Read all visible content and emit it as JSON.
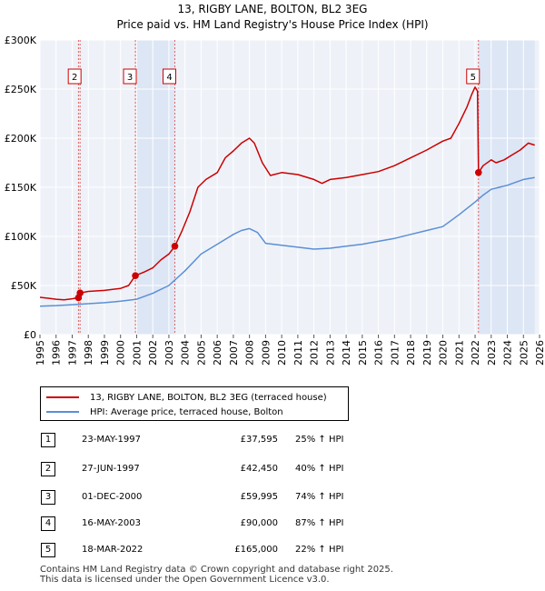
{
  "chart_data": {
    "type": "line",
    "title": "13, RIGBY LANE, BOLTON, BL2 3EG",
    "subtitle": "Price paid vs. HM Land Registry's House Price Index (HPI)",
    "xlabel": "",
    "ylabel": "",
    "xlim": [
      1995,
      2026
    ],
    "ylim": [
      0,
      300000
    ],
    "y_ticks": [
      {
        "value": 0,
        "label": "£0"
      },
      {
        "value": 50000,
        "label": "£50K"
      },
      {
        "value": 100000,
        "label": "£100K"
      },
      {
        "value": 150000,
        "label": "£150K"
      },
      {
        "value": 200000,
        "label": "£200K"
      },
      {
        "value": 250000,
        "label": "£250K"
      },
      {
        "value": 300000,
        "label": "£300K"
      }
    ],
    "x_ticks": [
      "1995",
      "1996",
      "1997",
      "1998",
      "1999",
      "2000",
      "2001",
      "2002",
      "2003",
      "2004",
      "2005",
      "2006",
      "2007",
      "2008",
      "2009",
      "2010",
      "2011",
      "2012",
      "2013",
      "2014",
      "2015",
      "2016",
      "2017",
      "2018",
      "2019",
      "2020",
      "2021",
      "2022",
      "2023",
      "2024",
      "2025",
      "2026"
    ],
    "grid": true,
    "series": [
      {
        "name": "13, RIGBY LANE, BOLTON, BL2 3EG (terraced house)",
        "color": "#cc0000",
        "x": [
          1995.0,
          1995.5,
          1996.0,
          1996.5,
          1997.0,
          1997.39,
          1997.49,
          1998.0,
          1999.0,
          2000.0,
          2000.5,
          2000.92,
          2001.5,
          2002.0,
          2002.5,
          2003.0,
          2003.37,
          2003.8,
          2004.3,
          2004.8,
          2005.3,
          2006.0,
          2006.5,
          2007.0,
          2007.5,
          2008.0,
          2008.3,
          2008.8,
          2009.3,
          2010.0,
          2011.0,
          2012.0,
          2012.5,
          2013.0,
          2014.0,
          2015.0,
          2016.0,
          2017.0,
          2018.0,
          2019.0,
          2020.0,
          2020.5,
          2021.0,
          2021.5,
          2021.8,
          2022.0,
          2022.15,
          2022.21,
          2022.5,
          2023.0,
          2023.3,
          2023.8,
          2024.3,
          2024.8,
          2025.3,
          2025.7
        ],
        "values": [
          38000,
          37000,
          36000,
          35500,
          36500,
          37595,
          42450,
          44000,
          45000,
          47000,
          50000,
          59995,
          64000,
          68000,
          76000,
          82000,
          90000,
          105000,
          125000,
          150000,
          158000,
          165000,
          180000,
          187000,
          195000,
          200000,
          195000,
          175000,
          162000,
          165000,
          163000,
          158000,
          154000,
          158000,
          160000,
          163000,
          166000,
          172000,
          180000,
          188000,
          197000,
          200000,
          215000,
          232000,
          245000,
          252000,
          248000,
          165000,
          172000,
          178000,
          175000,
          178000,
          183000,
          188000,
          195000,
          193000
        ]
      },
      {
        "name": "HPI: Average price, terraced house, Bolton",
        "color": "#5b8fd4",
        "x": [
          1995.0,
          1996.0,
          1997.0,
          1998.0,
          1999.0,
          2000.0,
          2001.0,
          2002.0,
          2003.0,
          2004.0,
          2005.0,
          2006.0,
          2007.0,
          2007.5,
          2008.0,
          2008.5,
          2009.0,
          2010.0,
          2011.0,
          2012.0,
          2013.0,
          2014.0,
          2015.0,
          2016.0,
          2017.0,
          2018.0,
          2019.0,
          2020.0,
          2021.0,
          2022.0,
          2022.5,
          2023.0,
          2023.5,
          2024.0,
          2024.5,
          2025.0,
          2025.7
        ],
        "values": [
          29000,
          29500,
          30500,
          31500,
          32500,
          34000,
          36000,
          42000,
          50000,
          65000,
          82000,
          92000,
          102000,
          106000,
          108000,
          104000,
          93000,
          91000,
          89000,
          87000,
          88000,
          90000,
          92000,
          95000,
          98000,
          102000,
          106000,
          110000,
          122000,
          135000,
          142000,
          148000,
          150000,
          152000,
          155000,
          158000,
          160000
        ]
      }
    ],
    "sale_markers": [
      {
        "label": "1",
        "x": 1997.39,
        "value": 37595
      },
      {
        "label": "2",
        "x": 1997.49,
        "value": 42450
      },
      {
        "label": "3",
        "x": 2000.92,
        "value": 59995
      },
      {
        "label": "4",
        "x": 2003.37,
        "value": 90000
      },
      {
        "label": "5",
        "x": 2022.21,
        "value": 165000
      }
    ],
    "shaded_ranges": [
      [
        2000.92,
        2003.37
      ],
      [
        2022.21,
        2025.7
      ]
    ],
    "flag_labels": [
      {
        "label": "2",
        "x": 1997.49
      },
      {
        "label": "3",
        "x": 2000.92
      },
      {
        "label": "4",
        "x": 2003.37
      },
      {
        "label": "5",
        "x": 2022.21
      }
    ]
  },
  "legend": {
    "items": [
      {
        "label": "13, RIGBY LANE, BOLTON, BL2 3EG (terraced house)",
        "color": "#cc0000"
      },
      {
        "label": "HPI: Average price, terraced house, Bolton",
        "color": "#5b8fd4"
      }
    ]
  },
  "sales": [
    {
      "num": "1",
      "date": "23-MAY-1997",
      "price": "£37,595",
      "hpi": "25% ↑ HPI"
    },
    {
      "num": "2",
      "date": "27-JUN-1997",
      "price": "£42,450",
      "hpi": "40% ↑ HPI"
    },
    {
      "num": "3",
      "date": "01-DEC-2000",
      "price": "£59,995",
      "hpi": "74% ↑ HPI"
    },
    {
      "num": "4",
      "date": "16-MAY-2003",
      "price": "£90,000",
      "hpi": "87% ↑ HPI"
    },
    {
      "num": "5",
      "date": "18-MAR-2022",
      "price": "£165,000",
      "hpi": "22% ↑ HPI"
    }
  ],
  "footer": {
    "line1": "Contains HM Land Registry data © Crown copyright and database right 2025.",
    "line2": "This data is licensed under the Open Government Licence v3.0."
  }
}
